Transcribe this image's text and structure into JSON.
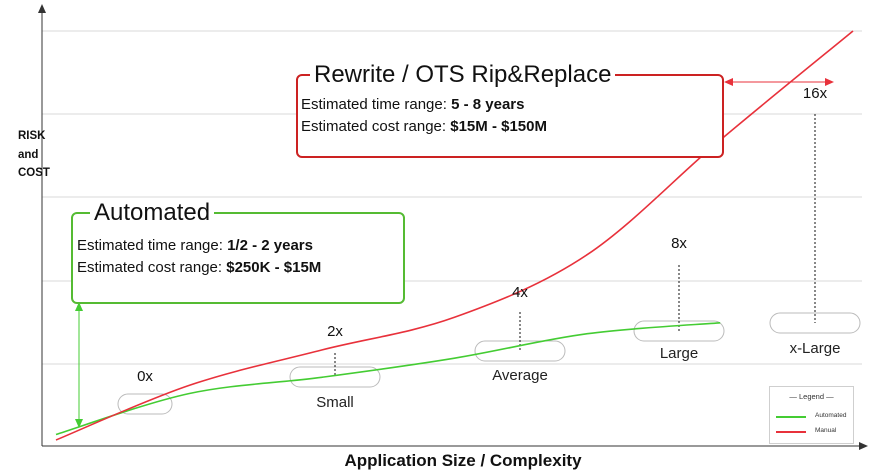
{
  "axes": {
    "y_label": "RISK\nand\nCOST",
    "x_label": "Application Size / Complexity"
  },
  "colors": {
    "automated": "#44cc33",
    "manual": "#e8313b",
    "grid": "#d9d9d9",
    "bubble_stroke": "#bbbbbb",
    "automated_box": "#55bb33",
    "manual_box": "#cc2222"
  },
  "boxes": {
    "automated": {
      "title": "Automated",
      "time_label": "Estimated time range: ",
      "time_value": "1/2 - 2 years",
      "cost_label": "Estimated cost range: ",
      "cost_value": "$250K - $15M"
    },
    "manual": {
      "title": "Rewrite / OTS Rip&Replace",
      "time_label": "Estimated time range: ",
      "time_value": "5 - 8 years",
      "cost_label": "Estimated cost range: ",
      "cost_value": "$15M - $150M"
    }
  },
  "legend": {
    "title": "— Legend —",
    "automated": "Automated",
    "manual": "Manual"
  },
  "chart_data": {
    "type": "line",
    "x_categories": [
      "",
      "Small",
      "Average",
      "Large",
      "x-Large"
    ],
    "multipliers": [
      "0x",
      "2x",
      "4x",
      "8x",
      "16x"
    ],
    "grid": true,
    "series": [
      {
        "name": "Automated",
        "x": [
          0,
          1,
          2,
          3,
          4,
          5
        ],
        "y": [
          0.2,
          1.7,
          2.3,
          3.0,
          3.9,
          4.3
        ]
      },
      {
        "name": "Manual",
        "x": [
          0,
          1,
          2,
          3,
          4,
          5,
          6
        ],
        "y": [
          0,
          2.0,
          3.3,
          4.5,
          6.8,
          11.0,
          15.0
        ]
      }
    ]
  }
}
